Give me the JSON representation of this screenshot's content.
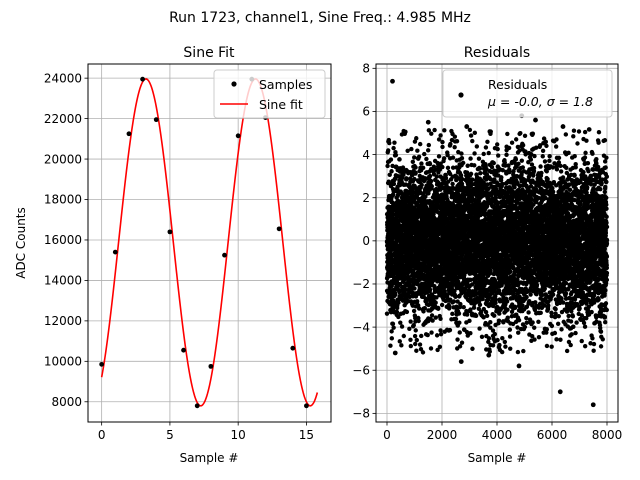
{
  "suptitle": "Run 1723, channel1, Sine Freq.: 4.985 MHz",
  "chart_data": [
    {
      "type": "line",
      "title": "Sine Fit",
      "xlabel": "Sample #",
      "ylabel": "ADC Counts",
      "xlim": [
        -1,
        16.8
      ],
      "ylim": [
        7000,
        24700
      ],
      "xticks": [
        0,
        5,
        10,
        15
      ],
      "xtick_labels": [
        "0",
        "5",
        "10",
        "15"
      ],
      "yticks": [
        8000,
        10000,
        12000,
        14000,
        16000,
        18000,
        20000,
        22000,
        24000
      ],
      "ytick_labels": [
        "8000",
        "10000",
        "12000",
        "14000",
        "16000",
        "18000",
        "20000",
        "22000",
        "24000"
      ],
      "grid": true,
      "legend_position": "top-right",
      "series": [
        {
          "name": "Samples",
          "kind": "scatter",
          "color": "#000000",
          "x": [
            0,
            1,
            2,
            3,
            4,
            5,
            6,
            7,
            8,
            9,
            10,
            11,
            12,
            13,
            14,
            15
          ],
          "y": [
            9850,
            15400,
            21250,
            23950,
            21950,
            16400,
            10550,
            7800,
            9750,
            15250,
            21150,
            23950,
            22050,
            16550,
            10650,
            7800
          ]
        },
        {
          "name": "Sine fit",
          "kind": "line",
          "color": "#ff0000",
          "x_range": [
            0,
            15.8
          ],
          "amplitude": 8080,
          "offset": 15880,
          "period_samples": 8.024,
          "phase_rad": -0.97
        }
      ]
    },
    {
      "type": "scatter",
      "title": "Residuals",
      "xlabel": "Sample #",
      "ylabel": "",
      "xlim": [
        -400,
        8400
      ],
      "ylim": [
        -8.4,
        8.2
      ],
      "xticks": [
        0,
        2000,
        4000,
        6000,
        8000
      ],
      "xtick_labels": [
        "0",
        "2000",
        "4000",
        "6000",
        "8000"
      ],
      "yticks": [
        -8,
        -6,
        -4,
        -2,
        0,
        2,
        4,
        6,
        8
      ],
      "ytick_labels": [
        "−8",
        "−6",
        "−4",
        "−2",
        "0",
        "2",
        "4",
        "6",
        "8"
      ],
      "grid": true,
      "legend_position": "top-right",
      "legend_line1": "Residuals",
      "legend_line2": "μ = -0.0, σ = 1.8",
      "series": [
        {
          "name": "Residuals",
          "color": "#000000",
          "n_points": 8000,
          "mean": 0.0,
          "std": 1.8,
          "x_range": [
            0,
            8000
          ],
          "outliers": [
            {
              "x": 200,
              "y": 7.4
            },
            {
              "x": 6300,
              "y": -7.0
            },
            {
              "x": 7500,
              "y": -7.6
            },
            {
              "x": 2900,
              "y": 5.3
            },
            {
              "x": 4900,
              "y": 5.8
            },
            {
              "x": 3700,
              "y": -5.3
            },
            {
              "x": 4800,
              "y": -5.8
            },
            {
              "x": 1500,
              "y": 5.5
            },
            {
              "x": 5400,
              "y": 5.6
            },
            {
              "x": 300,
              "y": -5.2
            },
            {
              "x": 2700,
              "y": -5.6
            },
            {
              "x": 6400,
              "y": 5.3
            }
          ]
        }
      ]
    }
  ]
}
